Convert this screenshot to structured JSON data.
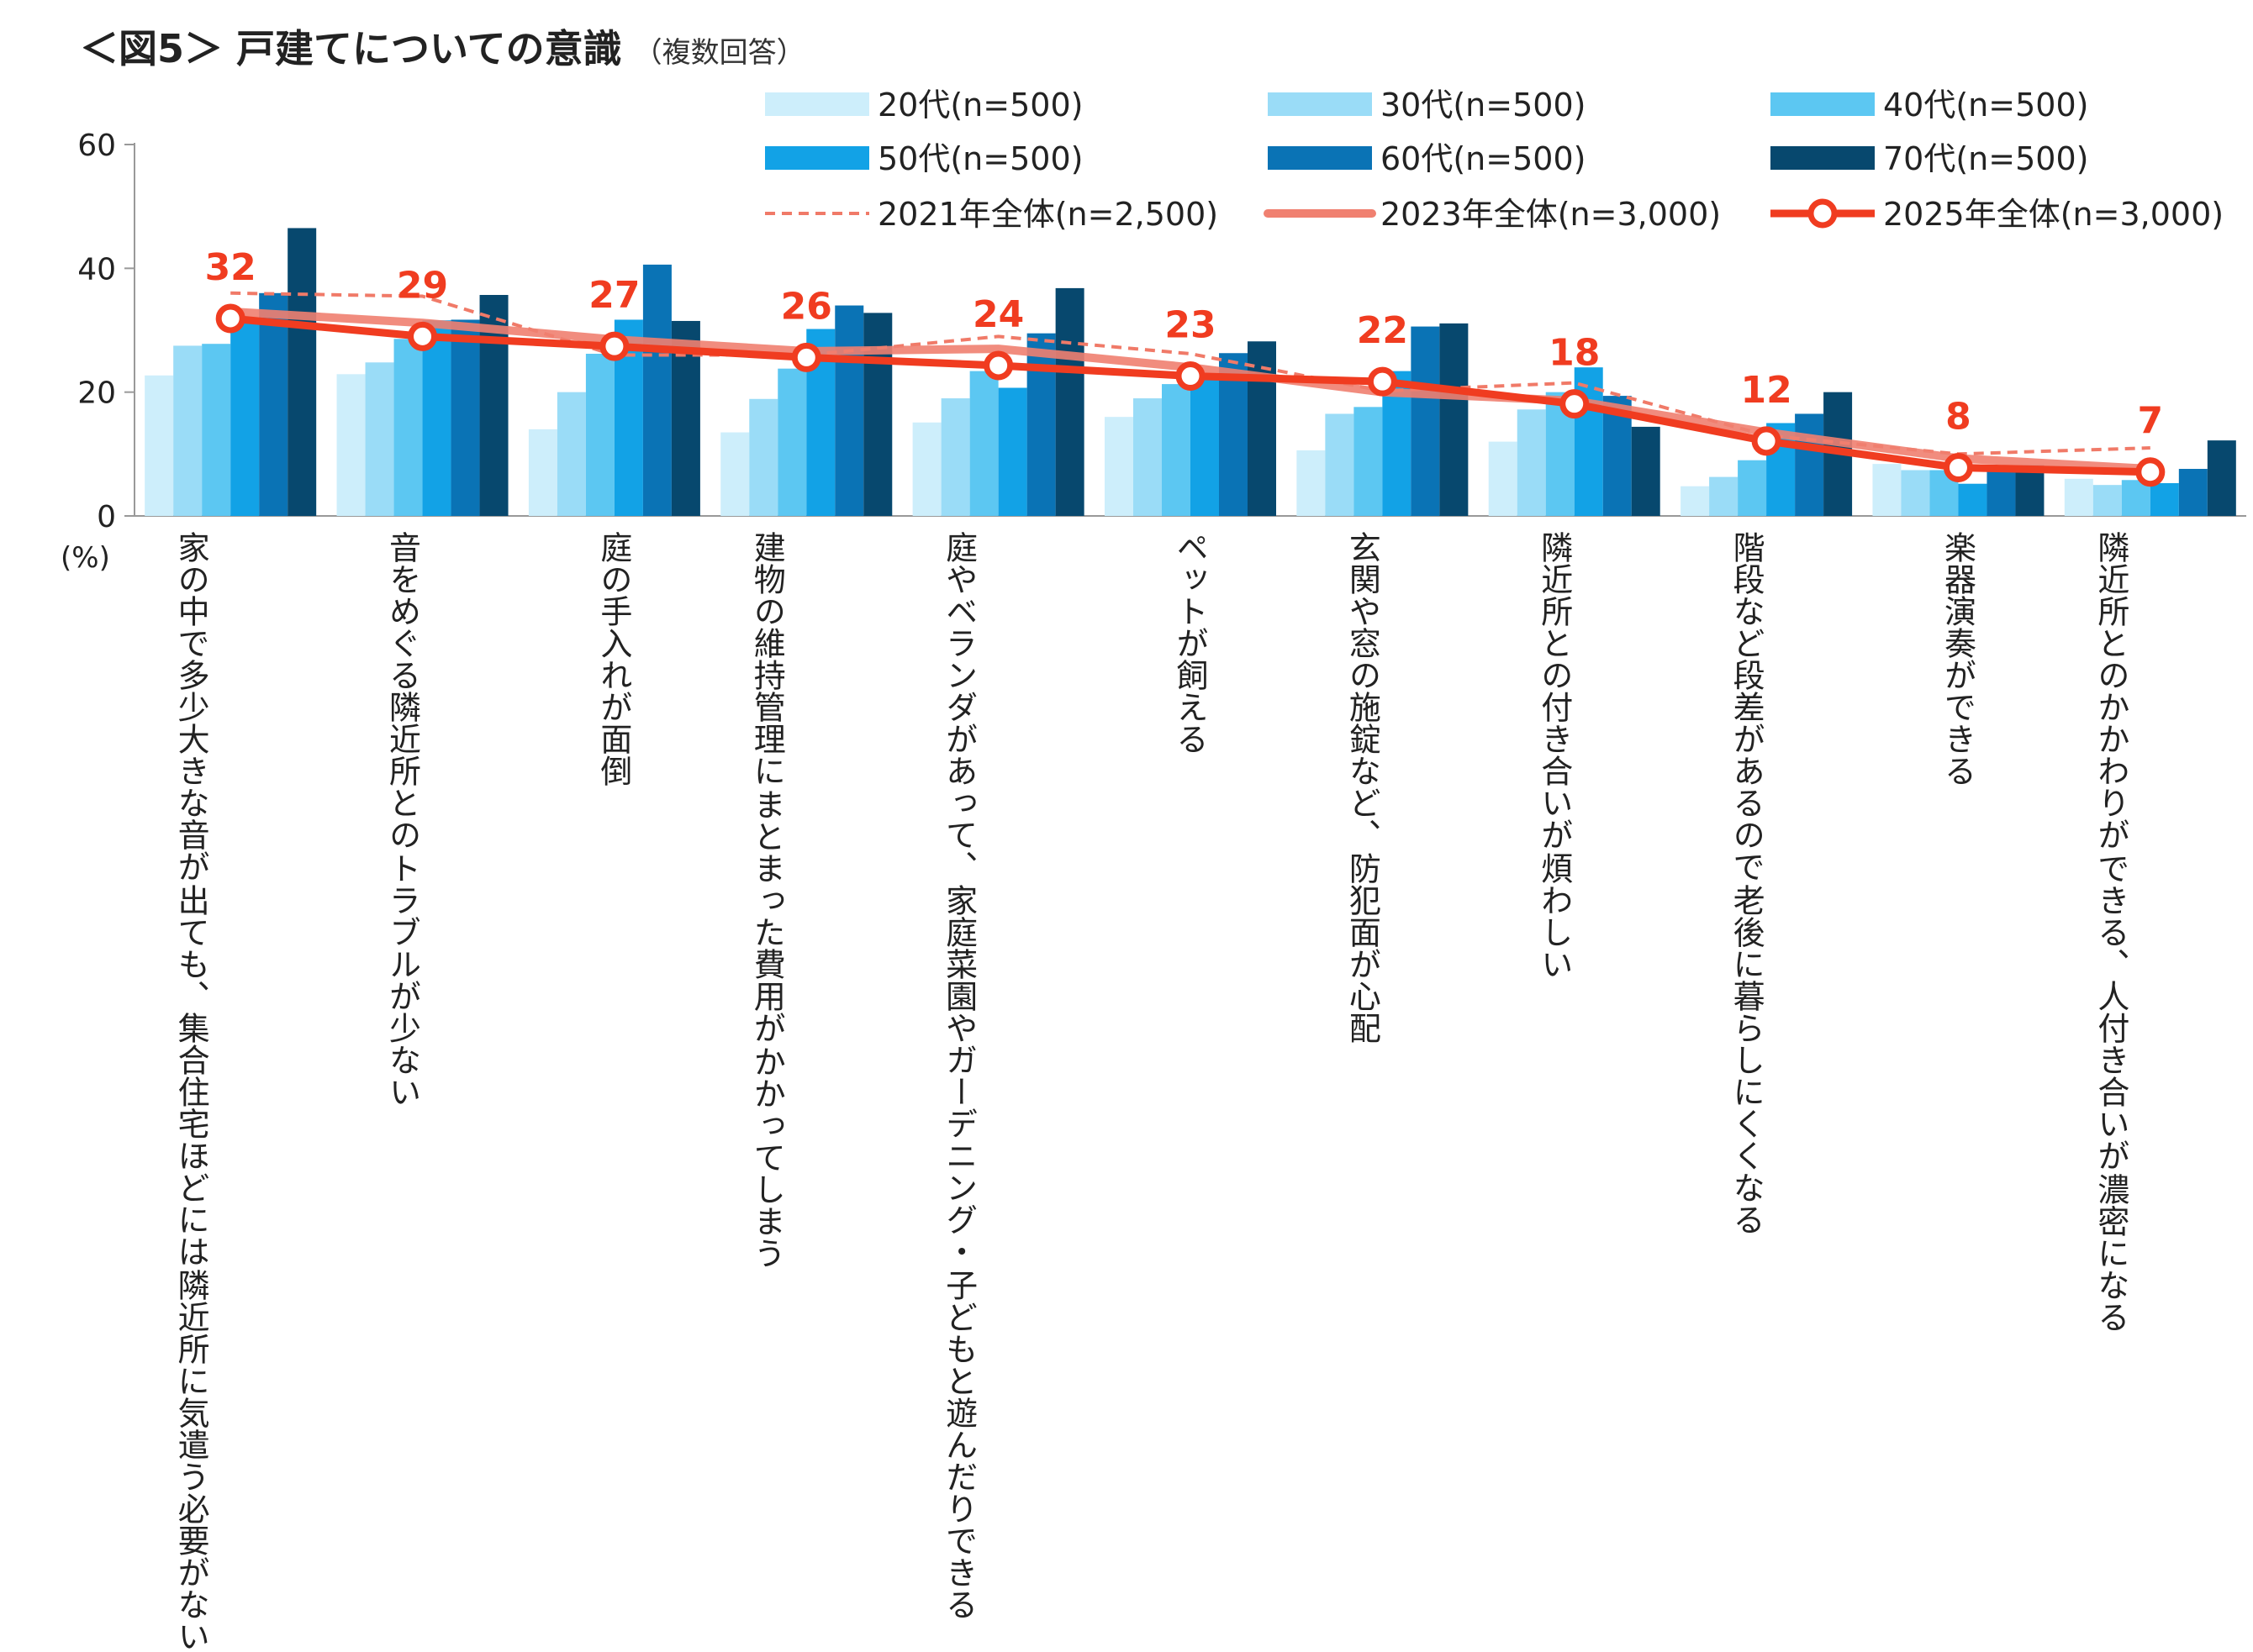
{
  "title": "＜図5＞ 戸建てについての意識",
  "subtitle": "（複数回答）",
  "chart_data": {
    "type": "bar",
    "ylim": [
      0,
      60
    ],
    "yticks": [
      "0",
      "20",
      "40",
      "60"
    ],
    "yunit": "(%)",
    "grid": false,
    "legend_position": "top",
    "categories": [
      [
        "家の中で多少大きな音が",
        "出ても、集合住宅ほどには",
        "隣近所に気遣う必要がない"
      ],
      [
        "音をめぐる隣近所との",
        "トラブルが少ない"
      ],
      [
        "庭の手入れが面倒"
      ],
      [
        "建物の維持管理に",
        "まとまった費用が",
        "かかってしまう"
      ],
      [
        "庭やベランダがあって、",
        "家庭菜園やガーデニング・",
        "子どもと遊んだりできる"
      ],
      [
        "ペットが飼える"
      ],
      [
        "玄関や窓の施錠など、",
        "防犯面が心配"
      ],
      [
        "隣近所との付き合いが",
        "煩わしい"
      ],
      [
        "階段など段差があるので",
        "老後に暮らしにくくなる"
      ],
      [
        "楽器演奏ができる"
      ],
      [
        "隣近所とのかかわりが",
        "できる、人付き合いが",
        "濃密になる"
      ]
    ],
    "series": [
      {
        "name": "20代(n=500)",
        "kind": "bar",
        "color": "#cdeefb",
        "values": [
          22.7,
          22.9,
          14.0,
          13.5,
          15.1,
          16.0,
          10.6,
          12.0,
          4.8,
          8.4,
          6.0
        ]
      },
      {
        "name": "30代(n=500)",
        "kind": "bar",
        "color": "#9adcf7",
        "values": [
          27.5,
          24.8,
          20.0,
          18.9,
          19.0,
          19.0,
          16.5,
          17.2,
          6.3,
          7.4,
          5.0
        ]
      },
      {
        "name": "40代(n=500)",
        "kind": "bar",
        "color": "#5cc7f2",
        "values": [
          27.8,
          28.6,
          26.2,
          23.8,
          23.4,
          21.3,
          17.6,
          20.0,
          9.0,
          7.4,
          5.8
        ]
      },
      {
        "name": "50代(n=500)",
        "kind": "bar",
        "color": "#12a2e6",
        "values": [
          31.7,
          31.6,
          31.7,
          30.2,
          20.7,
          22.5,
          23.4,
          24.0,
          15.0,
          5.2,
          5.3
        ]
      },
      {
        "name": "60代(n=500)",
        "kind": "bar",
        "color": "#0a73b5",
        "values": [
          36.0,
          31.7,
          40.6,
          34.0,
          29.5,
          26.3,
          30.6,
          19.4,
          16.5,
          7.4,
          7.6
        ]
      },
      {
        "name": "70代(n=500)",
        "kind": "bar",
        "color": "#07486e",
        "values": [
          46.5,
          35.7,
          31.5,
          32.8,
          36.8,
          28.2,
          31.1,
          14.4,
          20.0,
          8.2,
          12.2
        ]
      },
      {
        "name": "2021年全体(n=2,500)",
        "kind": "dashed-line",
        "color": "#f07a68",
        "values": [
          36.0,
          35.5,
          26.0,
          26.0,
          29.0,
          26.2,
          20.2,
          21.5,
          13.0,
          10.0,
          11.0
        ]
      },
      {
        "name": "2023年全体(n=3,000)",
        "kind": "line",
        "color": "#f08070",
        "values": [
          33.0,
          31.2,
          28.5,
          26.6,
          27.0,
          24.0,
          20.0,
          18.6,
          13.5,
          9.3,
          7.6
        ]
      },
      {
        "name": "2025年全体(n=3,000)",
        "kind": "line-marker",
        "color": "#f03c20",
        "values": [
          31.9,
          29.0,
          27.4,
          25.6,
          24.3,
          22.6,
          21.7,
          18.1,
          12.1,
          7.8,
          7.1
        ]
      }
    ],
    "data_labels": [
      "32",
      "29",
      "27",
      "26",
      "24",
      "23",
      "22",
      "18",
      "12",
      "8",
      "7"
    ]
  }
}
